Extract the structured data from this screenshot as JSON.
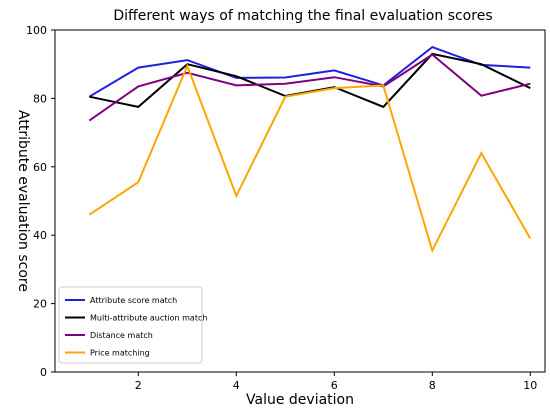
{
  "chart_data": {
    "type": "line",
    "title": "Different ways of matching the final evaluation scores",
    "xlabel": "Value deviation",
    "ylabel": "Attribute evaluation score",
    "x": [
      1,
      2,
      3,
      4,
      5,
      6,
      7,
      8,
      9,
      10
    ],
    "xlim": [
      0.3,
      10.3
    ],
    "ylim": [
      0,
      100
    ],
    "xticks": [
      2,
      4,
      6,
      8,
      10
    ],
    "yticks": [
      0,
      20,
      40,
      60,
      80,
      100
    ],
    "grid": false,
    "legend_position": "lower-left",
    "series": [
      {
        "name": "Attribute score match",
        "color": "#1f1fe0",
        "values": [
          80.5,
          89,
          91.2,
          86,
          86.1,
          88.2,
          83.8,
          95,
          89.8,
          89
        ]
      },
      {
        "name": "Multi-attribute auction match",
        "color": "#000000",
        "values": [
          80.5,
          77.5,
          90,
          86.5,
          80.7,
          83.3,
          77.5,
          93,
          90,
          83
        ]
      },
      {
        "name": "Distance match",
        "color": "#800080",
        "values": [
          73.5,
          83.5,
          87.5,
          83.8,
          84.3,
          86.2,
          83.5,
          92.8,
          80.8,
          84.3
        ]
      },
      {
        "name": "Price matching",
        "color": "#ffa500",
        "values": [
          46,
          55.5,
          89.5,
          51.5,
          80.5,
          83,
          83.8,
          35.5,
          64,
          39
        ]
      }
    ]
  }
}
